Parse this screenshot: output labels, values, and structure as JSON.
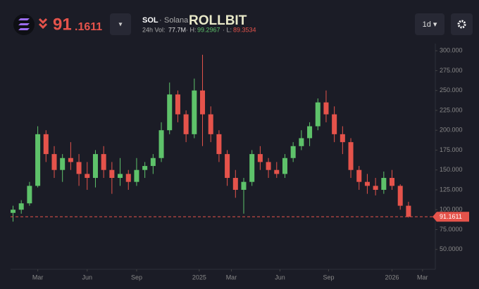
{
  "header": {
    "price_int": "91",
    "price_frac": ".1611",
    "dropdown": "▾",
    "symbol": "SOL",
    "sep": "·",
    "name": "Solana",
    "brand": "ROLLBIT",
    "vol_label": "24h Vol:",
    "vol": "77.7M",
    "high_label": "· H:",
    "high": "99.2967",
    "low_label": "· L:",
    "low": "89.3534",
    "interval": "1d ▾"
  },
  "chart_data": {
    "type": "candlestick",
    "up_color": "#5ec26a",
    "down_color": "#e5534b",
    "open": [
      96,
      100,
      108,
      130,
      195,
      170,
      150,
      165,
      160,
      145,
      140,
      170,
      150,
      140,
      145,
      135,
      150,
      155,
      165,
      200,
      245,
      220,
      195,
      250,
      220,
      195,
      170,
      140,
      125,
      135,
      170,
      160,
      150,
      145,
      165,
      180,
      190,
      205,
      235,
      220,
      195,
      185,
      150,
      135,
      130,
      125,
      140,
      130,
      105
    ],
    "high": [
      105,
      112,
      135,
      205,
      200,
      180,
      170,
      185,
      170,
      160,
      175,
      180,
      160,
      165,
      150,
      165,
      160,
      170,
      210,
      260,
      250,
      225,
      265,
      295,
      230,
      200,
      175,
      150,
      140,
      175,
      180,
      165,
      160,
      170,
      185,
      200,
      210,
      240,
      250,
      230,
      205,
      190,
      155,
      145,
      140,
      148,
      150,
      132,
      110
    ],
    "low": [
      85,
      95,
      105,
      128,
      160,
      140,
      135,
      150,
      130,
      125,
      128,
      140,
      120,
      130,
      125,
      130,
      140,
      145,
      160,
      195,
      210,
      185,
      190,
      180,
      185,
      160,
      130,
      115,
      95,
      130,
      150,
      140,
      140,
      140,
      160,
      175,
      180,
      200,
      210,
      185,
      170,
      140,
      125,
      120,
      118,
      120,
      125,
      100,
      90
    ],
    "close": [
      100,
      108,
      130,
      195,
      170,
      150,
      165,
      160,
      145,
      140,
      170,
      150,
      140,
      145,
      135,
      150,
      155,
      165,
      200,
      245,
      220,
      195,
      250,
      220,
      195,
      170,
      140,
      125,
      135,
      170,
      160,
      150,
      145,
      165,
      180,
      190,
      205,
      235,
      220,
      195,
      185,
      150,
      135,
      130,
      125,
      140,
      130,
      105,
      91.1611
    ],
    "last_price": 91.1611,
    "xlim": [
      -0.3,
      51
    ],
    "xticks": [
      {
        "value": 3,
        "label": "Mar"
      },
      {
        "value": 9,
        "label": "Jun"
      },
      {
        "value": 15,
        "label": "Sep"
      },
      {
        "value": 22.6,
        "label": "2025"
      },
      {
        "value": 26.5,
        "label": "Mar"
      },
      {
        "value": 32.4,
        "label": "Jun"
      },
      {
        "value": 38.3,
        "label": "Sep"
      },
      {
        "value": 46,
        "label": "2026"
      },
      {
        "value": 49.7,
        "label": "Mar"
      }
    ],
    "ylim": [
      25,
      309
    ],
    "yticks": [
      {
        "value": 50,
        "label": "50.0000"
      },
      {
        "value": 75,
        "label": "75.0000"
      },
      {
        "value": 100,
        "label": "100.000"
      },
      {
        "value": 125,
        "label": "125.000"
      },
      {
        "value": 150,
        "label": "150.000"
      },
      {
        "value": 175,
        "label": "175.000"
      },
      {
        "value": 200,
        "label": "200.000"
      },
      {
        "value": 225,
        "label": "225.000"
      },
      {
        "value": 250,
        "label": "250.000"
      },
      {
        "value": 275,
        "label": "275.000"
      },
      {
        "value": 300,
        "label": "300.000"
      }
    ]
  }
}
